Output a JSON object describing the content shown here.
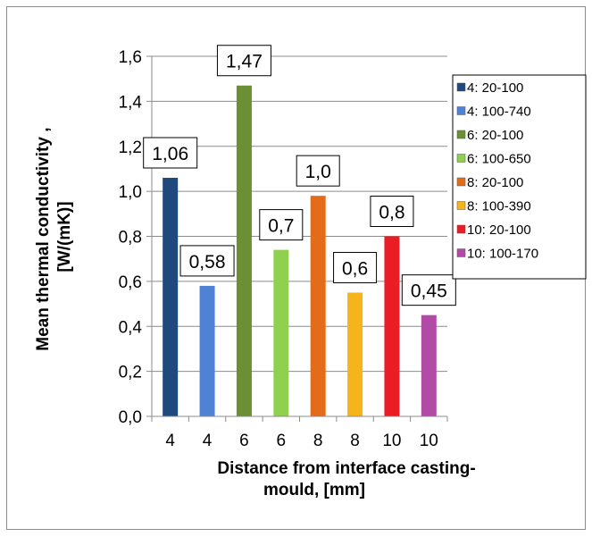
{
  "chart_data": {
    "type": "bar",
    "categories": [
      "4",
      "4",
      "6",
      "6",
      "8",
      "8",
      "10",
      "10"
    ],
    "values": [
      1.06,
      0.58,
      1.47,
      0.74,
      0.98,
      0.55,
      0.8,
      0.45
    ],
    "data_labels": [
      "1,06",
      "0,58",
      "1,47",
      "0,7",
      "1,0",
      "0,6",
      "0,8",
      "0,45"
    ],
    "series_names": [
      "4: 20-100",
      "4: 100-740",
      "6: 20-100",
      "6: 100-650",
      "8: 20-100",
      "8: 100-390",
      "10: 20-100",
      "10: 100-170"
    ],
    "colors": [
      "#1f497d",
      "#4f81d5",
      "#6a8f35",
      "#8fd14f",
      "#e36c1a",
      "#f5b41c",
      "#ea1c24",
      "#b24ba6"
    ],
    "xlabel_line1": "Distance from interface casting-",
    "xlabel_line2": "mould, [mm]",
    "ylabel_line1": "Mean thermal conductivity ,",
    "ylabel_line2": "[W/(mK)]",
    "ylim": [
      0,
      1.6
    ],
    "yticks": [
      0,
      0.2,
      0.4,
      0.6,
      0.8,
      1.0,
      1.2,
      1.4,
      1.6
    ],
    "ytick_labels": [
      "0,0",
      "0,2",
      "0,4",
      "0,6",
      "0,8",
      "1,0",
      "1,2",
      "1,4",
      "1,6"
    ],
    "grid": "horizontal",
    "legend_position": "right"
  }
}
